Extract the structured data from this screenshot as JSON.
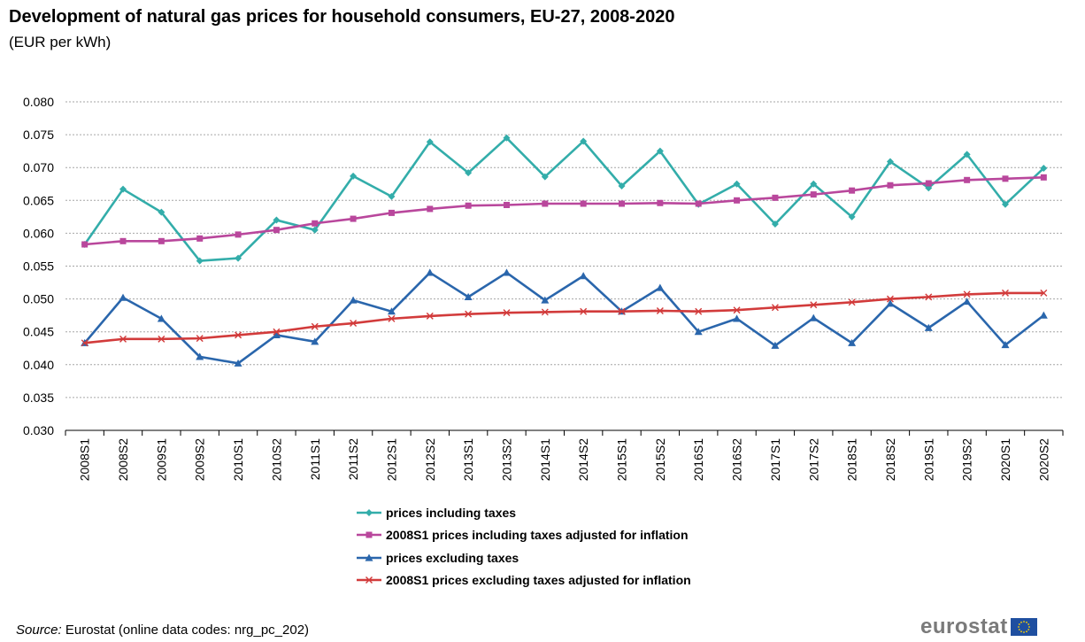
{
  "header": {
    "title": "Development of natural gas prices for household consumers, EU-27, 2008-2020",
    "subtitle": "(EUR per kWh)"
  },
  "footer": {
    "source_label": "Source:",
    "source_text": " Eurostat (online data codes: nrg_pc_202)",
    "logo_text": "eurostat"
  },
  "chart_data": {
    "type": "line",
    "title": "Development of natural gas prices for household consumers, EU-27, 2008-2020",
    "subtitle": "(EUR per kWh)",
    "xlabel": "",
    "ylabel": "",
    "ylim": [
      0.03,
      0.08
    ],
    "y_ticks": [
      "0.030",
      "0.035",
      "0.040",
      "0.045",
      "0.050",
      "0.055",
      "0.060",
      "0.065",
      "0.070",
      "0.075",
      "0.080"
    ],
    "grid": true,
    "legend_position": "bottom",
    "categories": [
      "2008S1",
      "2008S2",
      "2009S1",
      "2009S2",
      "2010S1",
      "2010S2",
      "2011S1",
      "2011S2",
      "2012S1",
      "2012S2",
      "2013S1",
      "2013S2",
      "2014S1",
      "2014S2",
      "2015S1",
      "2015S2",
      "2016S1",
      "2016S2",
      "2017S1",
      "2017S2",
      "2018S1",
      "2018S2",
      "2019S1",
      "2019S2",
      "2020S1",
      "2020S2"
    ],
    "series": [
      {
        "name": "prices including taxes",
        "color": "#33adaa",
        "marker": "diamond",
        "values": [
          0.0583,
          0.0667,
          0.0632,
          0.0558,
          0.0562,
          0.062,
          0.0605,
          0.0687,
          0.0656,
          0.0739,
          0.0692,
          0.0745,
          0.0686,
          0.074,
          0.0672,
          0.0725,
          0.0644,
          0.0675,
          0.0614,
          0.0675,
          0.0625,
          0.0709,
          0.0669,
          0.072,
          0.0644,
          0.0699
        ]
      },
      {
        "name": "2008S1 prices including taxes adjusted for inflation",
        "color": "#b9479c",
        "marker": "square",
        "values": [
          0.0583,
          0.0588,
          0.0588,
          0.0592,
          0.0598,
          0.0605,
          0.0615,
          0.0622,
          0.0631,
          0.0637,
          0.0642,
          0.0643,
          0.0645,
          0.0645,
          0.0645,
          0.0646,
          0.0645,
          0.065,
          0.0654,
          0.0659,
          0.0665,
          0.0673,
          0.0676,
          0.0681,
          0.0683,
          0.0685
        ]
      },
      {
        "name": "prices excluding taxes",
        "color": "#2a66ac",
        "marker": "triangle",
        "values": [
          0.0433,
          0.0502,
          0.047,
          0.0412,
          0.0402,
          0.0445,
          0.0435,
          0.0498,
          0.0481,
          0.054,
          0.0503,
          0.054,
          0.0498,
          0.0535,
          0.0481,
          0.0517,
          0.045,
          0.047,
          0.0429,
          0.0471,
          0.0433,
          0.0493,
          0.0456,
          0.0496,
          0.043,
          0.0475
        ]
      },
      {
        "name": "2008S1 prices excluding taxes adjusted for inflation",
        "color": "#d23b3b",
        "marker": "x",
        "values": [
          0.0433,
          0.0439,
          0.0439,
          0.044,
          0.0445,
          0.045,
          0.0458,
          0.0463,
          0.047,
          0.0474,
          0.0477,
          0.0479,
          0.048,
          0.0481,
          0.0481,
          0.0482,
          0.0481,
          0.0483,
          0.0487,
          0.0491,
          0.0495,
          0.05,
          0.0503,
          0.0507,
          0.0509,
          0.0509
        ]
      }
    ]
  }
}
